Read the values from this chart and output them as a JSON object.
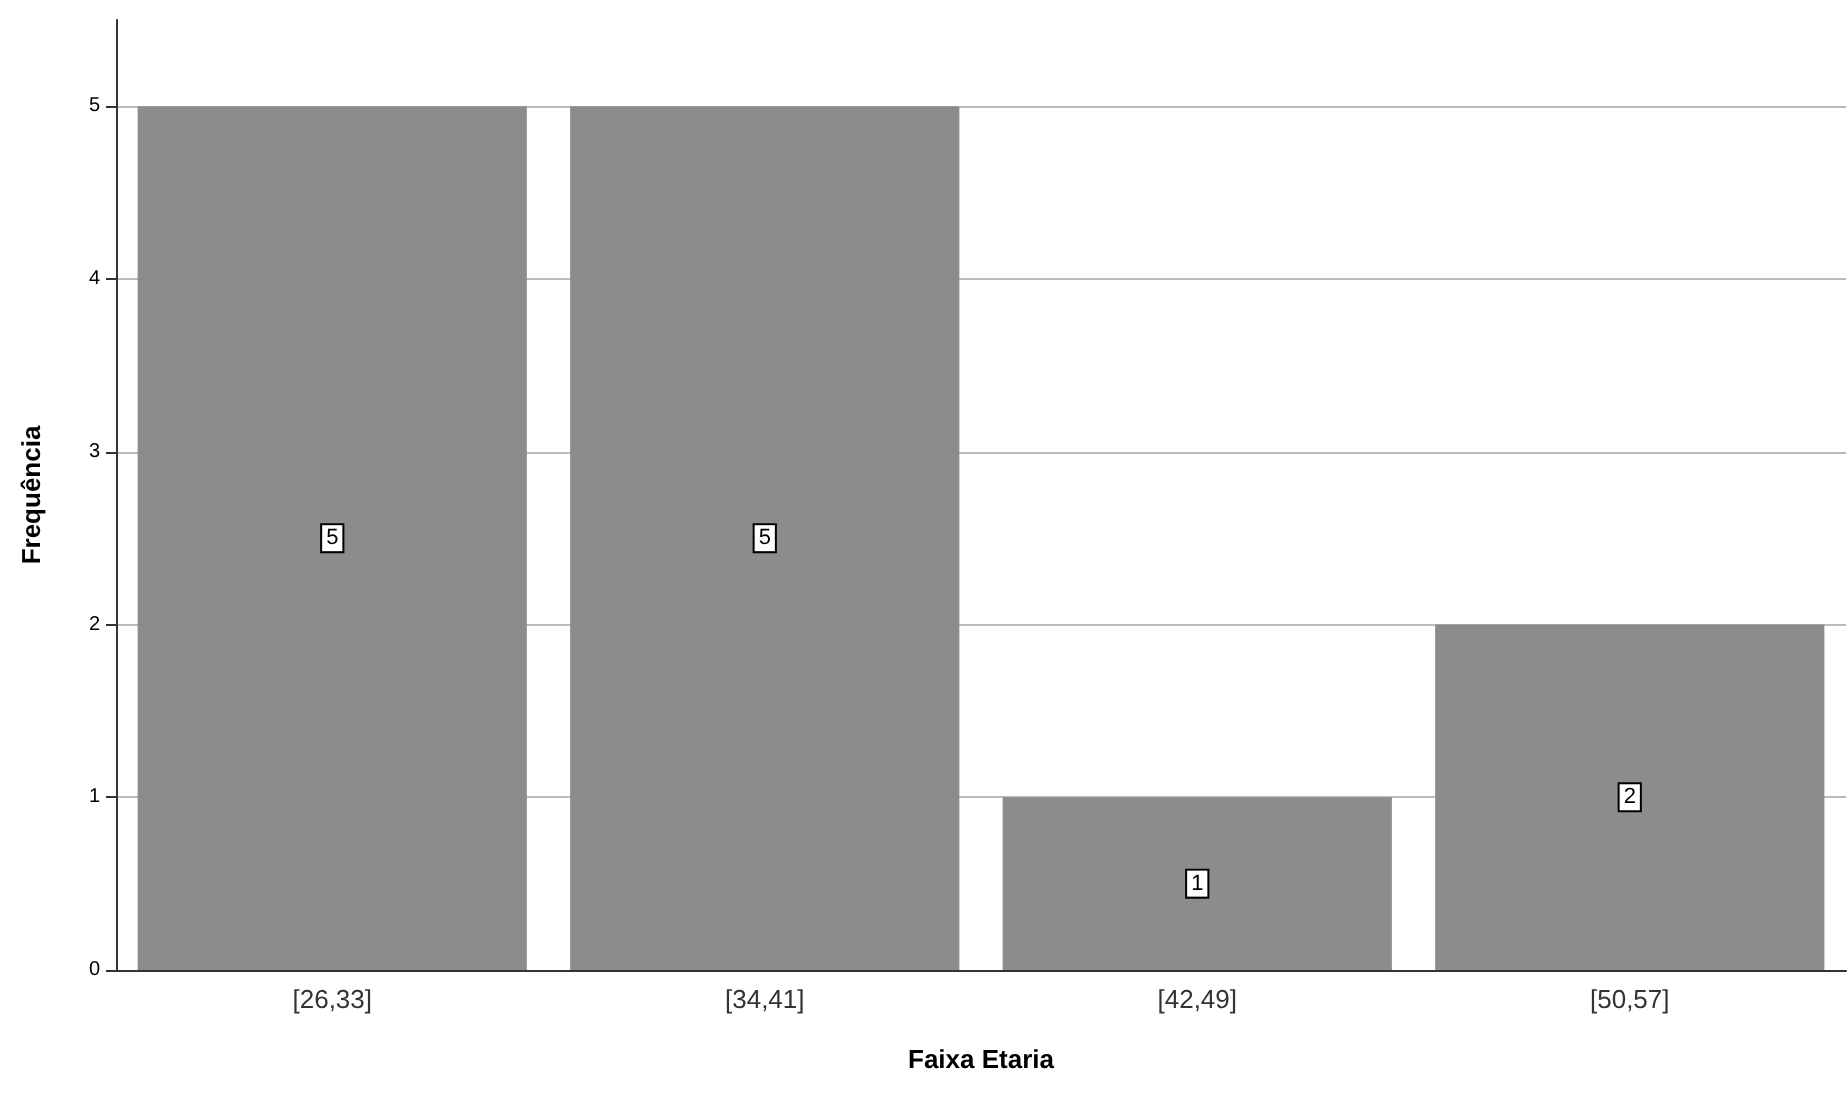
{
  "chart_data": {
    "type": "bar",
    "xlabel": "Faixa Etaria",
    "ylabel": "Frequência",
    "categories": [
      "[26,33]",
      "[34,41]",
      "[42,49]",
      "[50,57]"
    ],
    "values": [
      5,
      5,
      1,
      2
    ],
    "color": "#8c8c8c",
    "ylim": [
      0,
      5.5
    ],
    "yticks": [
      0,
      1,
      2,
      3,
      4,
      5
    ],
    "grid": "y",
    "data_labels": true
  }
}
